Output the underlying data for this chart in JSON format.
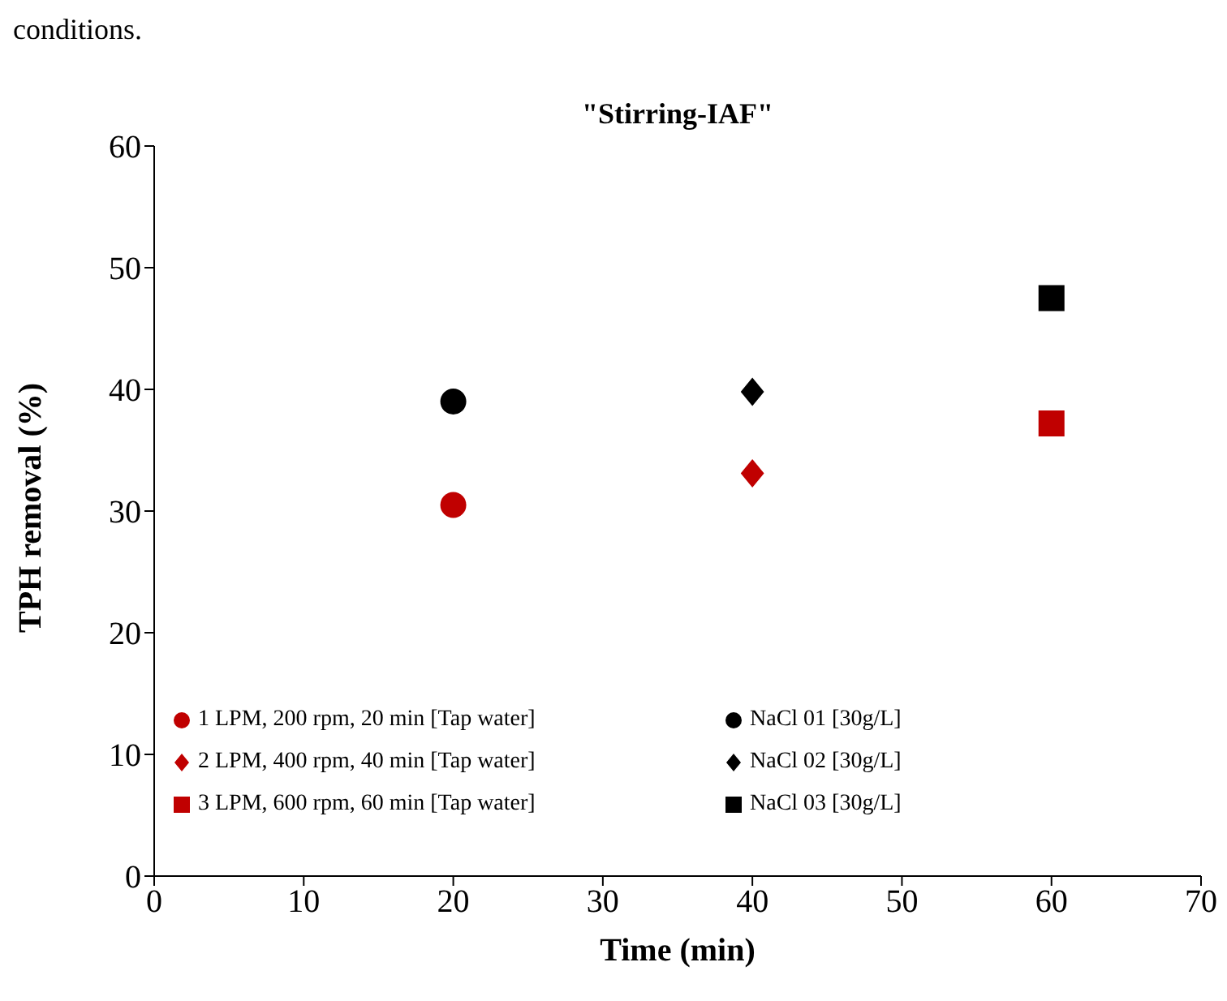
{
  "chart_data": {
    "type": "scatter",
    "title": "\"Stirring-IAF\"",
    "xlabel": "Time (min)",
    "ylabel": "TPH removal (%)",
    "annotations": [
      "conditions."
    ],
    "xlim": [
      0,
      70
    ],
    "xticks": [
      0,
      10,
      20,
      30,
      40,
      50,
      60,
      70
    ],
    "ylim": [
      0,
      60
    ],
    "yticks": [
      0,
      10,
      20,
      30,
      40,
      50,
      60
    ],
    "grid": false,
    "legend": "bottom left",
    "series": [
      {
        "name": "1 LPM, 200 rpm, 20 min [Tap water]",
        "color": "#c00000",
        "marker": "circle",
        "x": [
          20
        ],
        "values": [
          30.5
        ]
      },
      {
        "name": "NaCl 01 [30g/L]",
        "color": "#000000",
        "marker": "circle",
        "x": [
          20
        ],
        "values": [
          39
        ]
      },
      {
        "name": "2 LPM, 400 rpm, 40 min [Tap water]",
        "color": "#c00000",
        "marker": "diamond",
        "x": [
          40
        ],
        "values": [
          33.1
        ]
      },
      {
        "name": "NaCl 02 [30g/L]",
        "color": "#000000",
        "marker": "diamond",
        "x": [
          40
        ],
        "values": [
          39.8
        ]
      },
      {
        "name": "3 LPM, 600 rpm, 60 min [Tap water]",
        "color": "#c00000",
        "marker": "square",
        "x": [
          60
        ],
        "values": [
          37.2
        ]
      },
      {
        "name": "NaCl 03 [30g/L]",
        "color": "#000000",
        "marker": "square",
        "x": [
          60
        ],
        "values": [
          47.5
        ]
      }
    ]
  }
}
